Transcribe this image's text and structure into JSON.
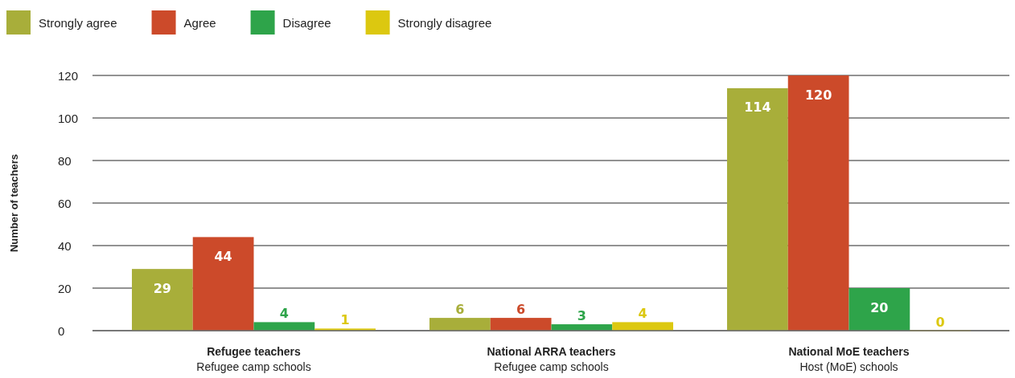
{
  "chart_data": {
    "type": "bar",
    "ylabel": "Number of teachers",
    "categories": [
      "Refugee teachers\nRefugee camp schools",
      "National ARRA teachers\nRefugee camp schools",
      "National MoE teachers\nHost (MoE) schools"
    ],
    "series": [
      {
        "name": "Strongly agree",
        "color": "#a8ae3a",
        "values": [
          29,
          6,
          114
        ]
      },
      {
        "name": "Agree",
        "color": "#cc4a2a",
        "values": [
          44,
          6,
          120
        ]
      },
      {
        "name": "Disagree",
        "color": "#2ea44a",
        "values": [
          4,
          3,
          20
        ]
      },
      {
        "name": "Strongly disagree",
        "color": "#dcc810",
        "values": [
          1,
          4,
          0
        ]
      }
    ],
    "ylim": [
      0,
      120
    ],
    "yticks": [
      0,
      20,
      40,
      60,
      80,
      100,
      120
    ],
    "grid": "y",
    "legend": "top left",
    "data_labels": true
  }
}
